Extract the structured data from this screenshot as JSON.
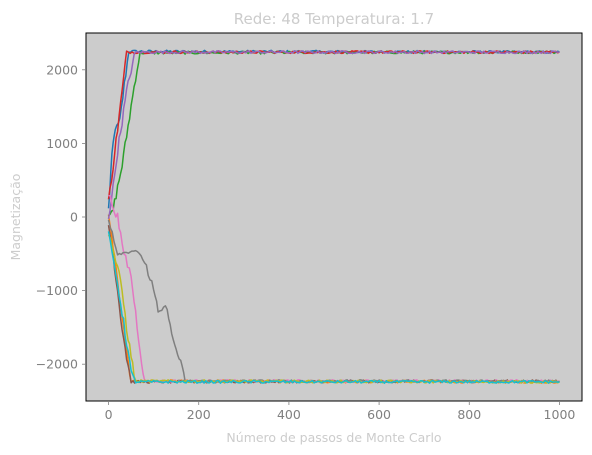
{
  "chart_data": {
    "type": "line",
    "title": "Rede: 48 Temperatura: 1.7",
    "xlabel": "Número de passos de Monte Carlo",
    "ylabel": "Magnetização",
    "xlim": [
      -50,
      1050
    ],
    "ylim": [
      -2500,
      2500
    ],
    "xticks": [
      0,
      200,
      400,
      600,
      800,
      1000
    ],
    "xtick_labels": [
      "0",
      "200",
      "400",
      "600",
      "800",
      "1000"
    ],
    "yticks": [
      -2000,
      -1000,
      0,
      1000,
      2000
    ],
    "ytick_labels": [
      "−2000",
      "−1000",
      "0",
      "1000",
      "2000"
    ],
    "grid": false,
    "plot_background": "#cccccc",
    "series": [
      {
        "color": "#1f77b4",
        "points": [
          [
            0,
            100
          ],
          [
            5,
            600
          ],
          [
            10,
            1000
          ],
          [
            15,
            1200
          ],
          [
            25,
            1300
          ],
          [
            35,
            1800
          ],
          [
            45,
            2250
          ],
          [
            1000,
            2240
          ]
        ]
      },
      {
        "color": "#ff7f0e",
        "points": [
          [
            0,
            0
          ],
          [
            10,
            -400
          ],
          [
            20,
            -900
          ],
          [
            30,
            -1300
          ],
          [
            40,
            -1800
          ],
          [
            50,
            -2230
          ],
          [
            1000,
            -2240
          ]
        ]
      },
      {
        "color": "#2ca02c",
        "points": [
          [
            0,
            0
          ],
          [
            10,
            100
          ],
          [
            20,
            400
          ],
          [
            30,
            700
          ],
          [
            40,
            1100
          ],
          [
            50,
            1500
          ],
          [
            60,
            1900
          ],
          [
            70,
            2230
          ],
          [
            1000,
            2240
          ]
        ]
      },
      {
        "color": "#d62728",
        "points": [
          [
            0,
            200
          ],
          [
            10,
            700
          ],
          [
            20,
            1200
          ],
          [
            30,
            1700
          ],
          [
            40,
            2240
          ],
          [
            1000,
            2240
          ]
        ]
      },
      {
        "color": "#9467bd",
        "points": [
          [
            0,
            0
          ],
          [
            10,
            400
          ],
          [
            20,
            900
          ],
          [
            30,
            1300
          ],
          [
            40,
            1700
          ],
          [
            50,
            2000
          ],
          [
            60,
            2240
          ],
          [
            1000,
            2240
          ]
        ]
      },
      {
        "color": "#8c564b",
        "points": [
          [
            0,
            -100
          ],
          [
            10,
            -500
          ],
          [
            20,
            -1000
          ],
          [
            30,
            -1500
          ],
          [
            40,
            -1900
          ],
          [
            50,
            -2240
          ],
          [
            1000,
            -2230
          ]
        ]
      },
      {
        "color": "#e377c2",
        "points": [
          [
            0,
            300
          ],
          [
            20,
            0
          ],
          [
            30,
            -400
          ],
          [
            50,
            -800
          ],
          [
            60,
            -1300
          ],
          [
            70,
            -1800
          ],
          [
            80,
            -2230
          ],
          [
            1000,
            -2230
          ]
        ]
      },
      {
        "color": "#7f7f7f",
        "points": [
          [
            0,
            0
          ],
          [
            20,
            -500
          ],
          [
            40,
            -480
          ],
          [
            60,
            -450
          ],
          [
            80,
            -600
          ],
          [
            100,
            -1000
          ],
          [
            110,
            -1300
          ],
          [
            130,
            -1200
          ],
          [
            140,
            -1600
          ],
          [
            150,
            -1800
          ],
          [
            160,
            -2000
          ],
          [
            170,
            -2230
          ],
          [
            1000,
            -2230
          ]
        ]
      },
      {
        "color": "#bcbd22",
        "points": [
          [
            0,
            -200
          ],
          [
            20,
            -700
          ],
          [
            30,
            -1000
          ],
          [
            40,
            -1500
          ],
          [
            50,
            -1900
          ],
          [
            60,
            -2230
          ],
          [
            1000,
            -2240
          ]
        ]
      },
      {
        "color": "#17becf",
        "points": [
          [
            0,
            -250
          ],
          [
            20,
            -900
          ],
          [
            30,
            -1300
          ],
          [
            40,
            -1700
          ],
          [
            50,
            -2100
          ],
          [
            60,
            -2240
          ],
          [
            1000,
            -2240
          ]
        ]
      }
    ]
  }
}
